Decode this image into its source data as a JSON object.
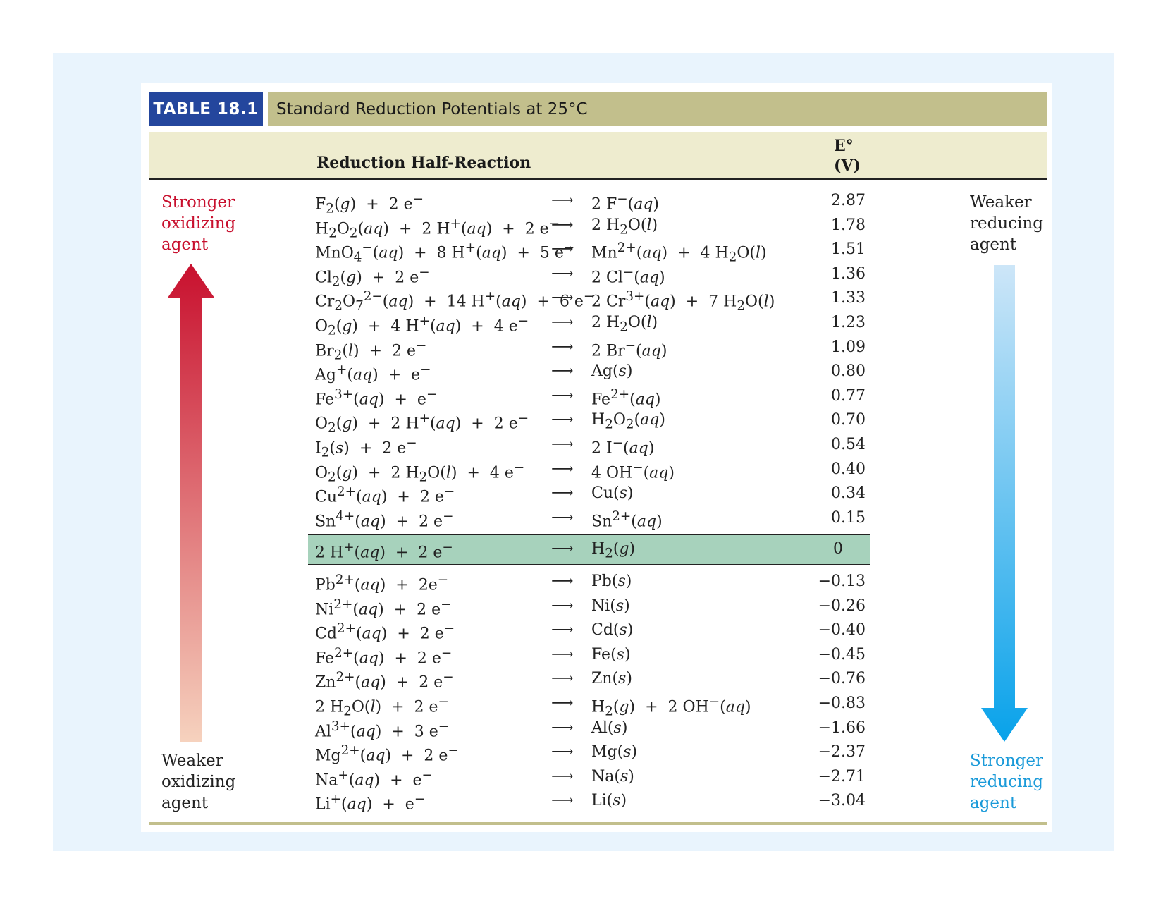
{
  "table": {
    "tag": "TABLE 18.1",
    "title": "Standard Reduction Potentials at 25°C",
    "col_reaction": "Reduction Half-Reaction",
    "col_potential_line1": "E°",
    "col_potential_line2": "(V)"
  },
  "labels": {
    "left_top": [
      "Stronger",
      "oxidizing",
      "agent"
    ],
    "left_bottom": [
      "Weaker",
      "oxidizing",
      "agent"
    ],
    "right_top": [
      "Weaker",
      "reducing",
      "agent"
    ],
    "right_bottom": [
      "Stronger",
      "reducing",
      "agent"
    ]
  },
  "colors": {
    "tag": "#24469d",
    "title_bar": "#c2bf8c",
    "highlight": "#a7d2bc",
    "red_arrow": "#c8102e",
    "blue_arrow": "#1a9ad9"
  },
  "rows": [
    {
      "lhs": "F<sub>2</sub>(<i>g</i>) &nbsp;+ &nbsp;2 e<sup>−</sup>",
      "rhs": "2 F<sup>−</sup>(<i>aq</i>)",
      "e": "2.87"
    },
    {
      "lhs": "H<sub>2</sub>O<sub>2</sub>(<i>aq</i>) &nbsp;+ &nbsp;2 H<sup>+</sup>(<i>aq</i>) &nbsp;+ &nbsp;2 e<sup>−</sup>",
      "rhs": "2 H<sub>2</sub>O(<i>l</i>)",
      "e": "1.78"
    },
    {
      "lhs": "MnO<sub>4</sub><sup>−</sup>(<i>aq</i>) &nbsp;+ &nbsp;8 H<sup>+</sup>(<i>aq</i>) &nbsp;+ &nbsp;5 e<sup>−</sup>",
      "rhs": "Mn<sup>2+</sup>(<i>aq</i>) &nbsp;+ &nbsp;4 H<sub>2</sub>O(<i>l</i>)",
      "e": "1.51"
    },
    {
      "lhs": "Cl<sub>2</sub>(<i>g</i>) &nbsp;+ &nbsp;2 e<sup>−</sup>",
      "rhs": "2 Cl<sup>−</sup>(<i>aq</i>)",
      "e": "1.36"
    },
    {
      "lhs": "Cr<sub>2</sub>O<sub>7</sub><sup>2−</sup>(<i>aq</i>) &nbsp;+ &nbsp;14 H<sup>+</sup>(<i>aq</i>) &nbsp;+ &nbsp;6 e<sup>−</sup>",
      "rhs": "2 Cr<sup>3+</sup>(<i>aq</i>) &nbsp;+ &nbsp;7 H<sub>2</sub>O(<i>l</i>)",
      "e": "1.33"
    },
    {
      "lhs": "O<sub>2</sub>(<i>g</i>) &nbsp;+ &nbsp;4 H<sup>+</sup>(<i>aq</i>) &nbsp;+ &nbsp;4 e<sup>−</sup>",
      "rhs": "2 H<sub>2</sub>O(<i>l</i>)",
      "e": "1.23"
    },
    {
      "lhs": "Br<sub>2</sub>(<i>l</i>) &nbsp;+ &nbsp;2 e<sup>−</sup>",
      "rhs": "2 Br<sup>−</sup>(<i>aq</i>)",
      "e": "1.09"
    },
    {
      "lhs": "Ag<sup>+</sup>(<i>aq</i>) &nbsp;+ &nbsp;e<sup>−</sup>",
      "rhs": "Ag(<i>s</i>)",
      "e": "0.80"
    },
    {
      "lhs": "Fe<sup>3+</sup>(<i>aq</i>) &nbsp;+ &nbsp;e<sup>−</sup>",
      "rhs": "Fe<sup>2+</sup>(<i>aq</i>)",
      "e": "0.77"
    },
    {
      "lhs": "O<sub>2</sub>(<i>g</i>) &nbsp;+ &nbsp;2 H<sup>+</sup>(<i>aq</i>) &nbsp;+ &nbsp;2 e<sup>−</sup>",
      "rhs": "H<sub>2</sub>O<sub>2</sub>(<i>aq</i>)",
      "e": "0.70"
    },
    {
      "lhs": "I<sub>2</sub>(<i>s</i>) &nbsp;+ &nbsp;2 e<sup>−</sup>",
      "rhs": "2 I<sup>−</sup>(<i>aq</i>)",
      "e": "0.54"
    },
    {
      "lhs": "O<sub>2</sub>(<i>g</i>) &nbsp;+ &nbsp;2 H<sub>2</sub>O(<i>l</i>) &nbsp;+ &nbsp;4 e<sup>−</sup>",
      "rhs": "4 OH<sup>−</sup>(<i>aq</i>)",
      "e": "0.40"
    },
    {
      "lhs": "Cu<sup>2+</sup>(<i>aq</i>) &nbsp;+ &nbsp;2 e<sup>−</sup>",
      "rhs": "Cu(<i>s</i>)",
      "e": "0.34"
    },
    {
      "lhs": "Sn<sup>4+</sup>(<i>aq</i>) &nbsp;+ &nbsp;2 e<sup>−</sup>",
      "rhs": "Sn<sup>2+</sup>(<i>aq</i>)",
      "e": "0.15"
    },
    {
      "lhs": "2 H<sup>+</sup>(<i>aq</i>) &nbsp;+ &nbsp;2 e<sup>−</sup>",
      "rhs": "H<sub>2</sub>(<i>g</i>)",
      "e": "0",
      "highlight": true
    },
    {
      "lhs": "Pb<sup>2+</sup>(<i>aq</i>) &nbsp;+ &nbsp;2e<sup>−</sup>",
      "rhs": "Pb(<i>s</i>)",
      "e": "−0.13"
    },
    {
      "lhs": "Ni<sup>2+</sup>(<i>aq</i>) &nbsp;+ &nbsp;2 e<sup>−</sup>",
      "rhs": "Ni(<i>s</i>)",
      "e": "−0.26"
    },
    {
      "lhs": "Cd<sup>2+</sup>(<i>aq</i>) &nbsp;+ &nbsp;2 e<sup>−</sup>",
      "rhs": "Cd(<i>s</i>)",
      "e": "−0.40"
    },
    {
      "lhs": "Fe<sup>2+</sup>(<i>aq</i>) &nbsp;+ &nbsp;2 e<sup>−</sup>",
      "rhs": "Fe(<i>s</i>)",
      "e": "−0.45"
    },
    {
      "lhs": "Zn<sup>2+</sup>(<i>aq</i>) &nbsp;+ &nbsp;2 e<sup>−</sup>",
      "rhs": "Zn(<i>s</i>)",
      "e": "−0.76"
    },
    {
      "lhs": "2 H<sub>2</sub>O(<i>l</i>) &nbsp;+ &nbsp;2 e<sup>−</sup>",
      "rhs": "H<sub>2</sub>(<i>g</i>) &nbsp;+ &nbsp;2 OH<sup>−</sup>(<i>aq</i>)",
      "e": "−0.83"
    },
    {
      "lhs": "Al<sup>3+</sup>(<i>aq</i>) &nbsp;+ &nbsp;3 e<sup>−</sup>",
      "rhs": "Al(<i>s</i>)",
      "e": "−1.66"
    },
    {
      "lhs": "Mg<sup>2+</sup>(<i>aq</i>) &nbsp;+ &nbsp;2 e<sup>−</sup>",
      "rhs": "Mg(<i>s</i>)",
      "e": "−2.37"
    },
    {
      "lhs": "Na<sup>+</sup>(<i>aq</i>) &nbsp;+ &nbsp;e<sup>−</sup>",
      "rhs": "Na(<i>s</i>)",
      "e": "−2.71"
    },
    {
      "lhs": "Li<sup>+</sup>(<i>aq</i>) &nbsp;+ &nbsp;e<sup>−</sup>",
      "rhs": "Li(<i>s</i>)",
      "e": "−3.04"
    }
  ]
}
